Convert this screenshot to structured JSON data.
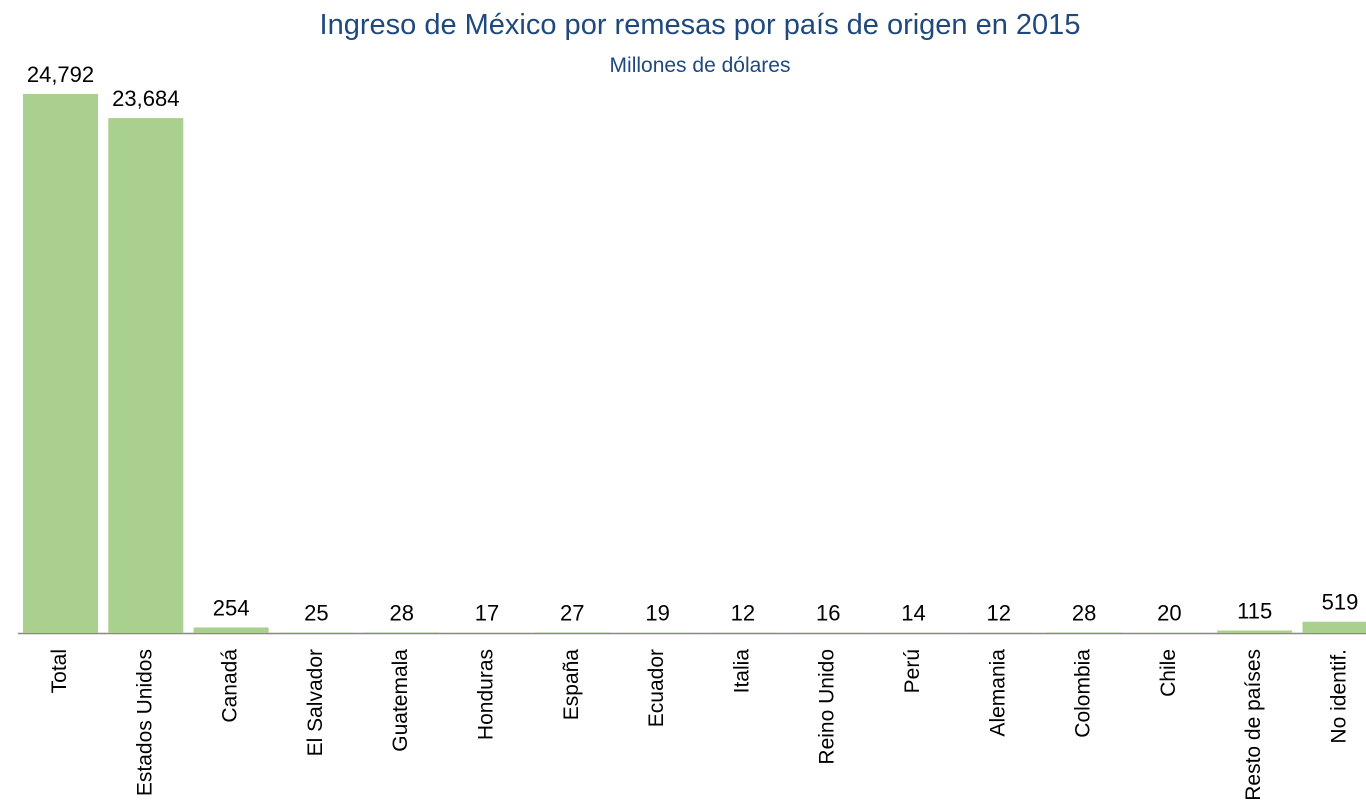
{
  "chart_data": {
    "type": "bar",
    "title": "Ingreso de México por remesas por país de origen en 2015",
    "subtitle": "Millones de dólares",
    "categories": [
      "Total",
      "Estados Unidos",
      "Canadá",
      "El Salvador",
      "Guatemala",
      "Honduras",
      "España",
      "Ecuador",
      "Italia",
      "Reino Unido",
      "Perú",
      "Alemania",
      "Colombia",
      "Chile",
      "Resto de países",
      "No identif."
    ],
    "values": [
      24792,
      23684,
      254,
      25,
      28,
      17,
      27,
      19,
      12,
      16,
      14,
      12,
      28,
      20,
      115,
      519
    ],
    "value_labels": [
      "24,792",
      "23,684",
      "254",
      "25",
      "28",
      "17",
      "27",
      "19",
      "12",
      "16",
      "14",
      "12",
      "28",
      "20",
      "115",
      "519"
    ],
    "color": "#a9d08e"
  }
}
